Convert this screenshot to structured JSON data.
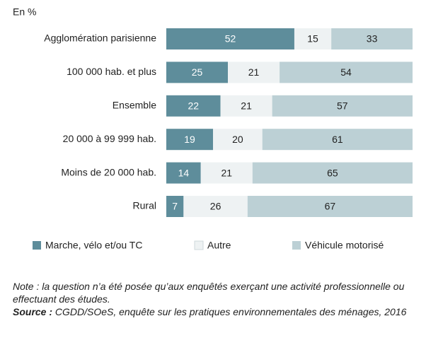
{
  "chart_data": {
    "type": "stacked-barh",
    "unit_label": "En %",
    "categories": [
      "Agglomération parisienne",
      "100 000 hab. et plus",
      "Ensemble",
      "20 000 à 99 999 hab.",
      "Moins de 20 000 hab.",
      "Rural"
    ],
    "series": [
      {
        "name": "Marche, vélo et/ou TC",
        "color": "#5e8d9b",
        "label_color": "#ffffff",
        "values": [
          52,
          25,
          22,
          19,
          14,
          7
        ]
      },
      {
        "name": "Autre",
        "color": "#eef2f3",
        "label_color": "#222222",
        "values": [
          15,
          21,
          21,
          20,
          21,
          26
        ]
      },
      {
        "name": "Véhicule motorisé",
        "color": "#bcd0d5",
        "label_color": "#222222",
        "values": [
          33,
          54,
          57,
          61,
          65,
          67
        ]
      }
    ],
    "xlim": [
      0,
      100
    ],
    "note": "Note : la question n’a été posée qu’aux enquêtés exerçant une activité professionnelle ou effectuant des études.",
    "source_label": "Source :",
    "source": "CGDD/SOeS, enquête sur les pratiques environnementales des ménages, 2016"
  }
}
